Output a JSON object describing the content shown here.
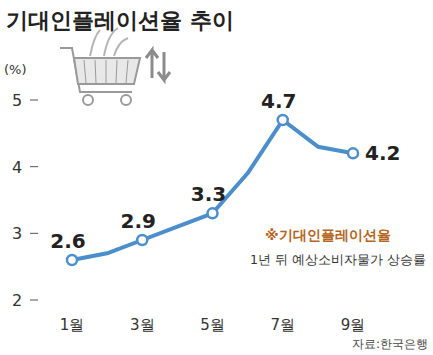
{
  "chart_data": {
    "type": "line",
    "title": "기대인플레이션율 추이",
    "ylabel": "(%)",
    "categories": [
      "1월",
      null,
      "3월",
      null,
      "5월",
      null,
      "7월",
      null,
      "9월"
    ],
    "values": [
      2.6,
      2.7,
      2.9,
      3.1,
      3.3,
      3.9,
      4.7,
      4.3,
      4.2
    ],
    "value_labels": [
      "2.6",
      null,
      "2.9",
      null,
      "3.3",
      null,
      "4.7",
      null,
      "4.2"
    ],
    "color": "#4a8fcb",
    "marker": "circle",
    "ylim": [
      2,
      5
    ],
    "yticks": [
      2,
      3,
      4,
      5
    ],
    "grid": false,
    "data_labels": true,
    "annotations": [
      "※기대인플레이션율",
      "1년 뒤 예상소비자물가 상승률"
    ],
    "source": "자료:한국은행"
  }
}
